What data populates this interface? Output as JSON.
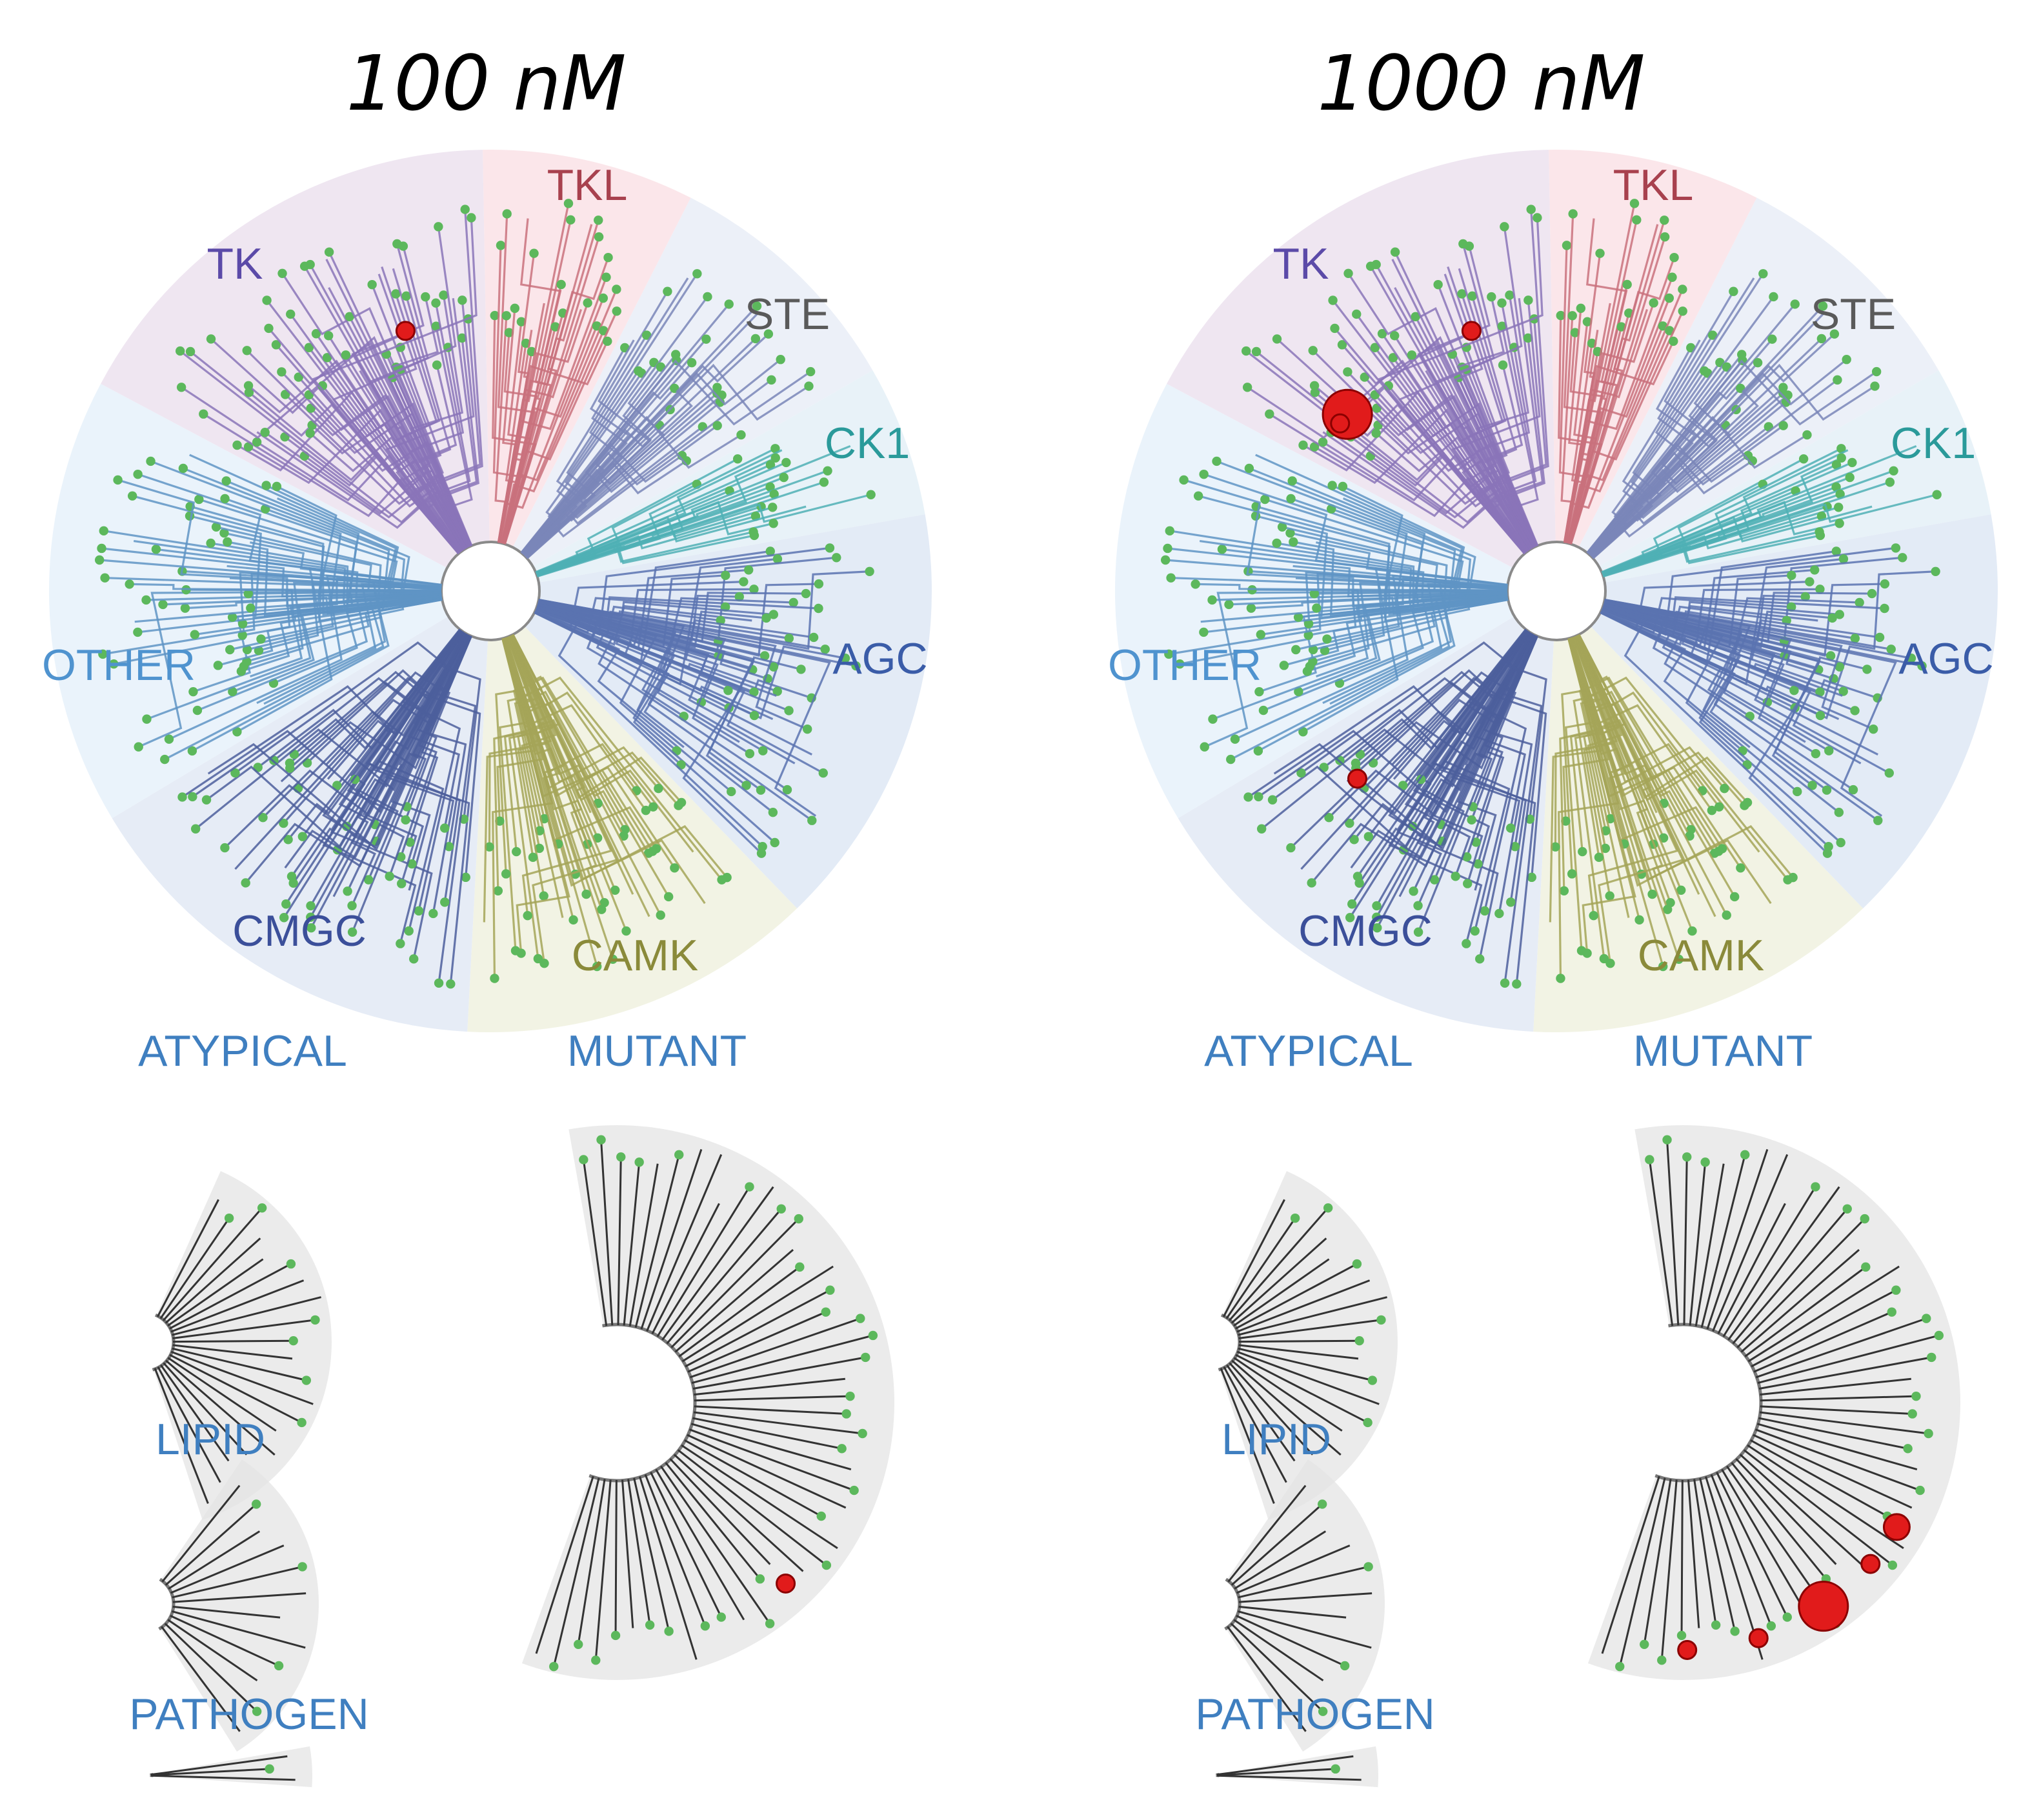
{
  "panels": [
    {
      "id": "left",
      "title": "100 nM",
      "hits": [
        {
          "group": "TK",
          "leaf": 0.72,
          "size": "small"
        },
        {
          "group": "MUTANT",
          "leaf": 0.7,
          "size": "small"
        }
      ]
    },
    {
      "id": "right",
      "title": "1000 nM",
      "hits": [
        {
          "group": "TK",
          "leaf": 0.72,
          "size": "small"
        },
        {
          "group": "TK",
          "leaf": 0.2,
          "size": "large"
        },
        {
          "group": "TK",
          "leaf": 0.16,
          "size": "small"
        },
        {
          "group": "CMGC",
          "leaf": 0.78,
          "size": "small"
        },
        {
          "group": "MUTANT",
          "leaf": 0.62,
          "size": "medium"
        },
        {
          "group": "MUTANT",
          "leaf": 0.67,
          "size": "small"
        },
        {
          "group": "MUTANT",
          "leaf": 0.74,
          "size": "large"
        },
        {
          "group": "MUTANT",
          "leaf": 0.82,
          "size": "small"
        },
        {
          "group": "MUTANT",
          "leaf": 0.9,
          "size": "small"
        }
      ]
    }
  ],
  "kinome_groups": [
    {
      "name": "TKL",
      "label_color": "#a8414e",
      "branch_color": "#c9717c",
      "bg_color": "#fbe6ea"
    },
    {
      "name": "STE",
      "label_color": "#5a5a5a",
      "branch_color": "#7a86b8",
      "bg_color": "#ecf0f8"
    },
    {
      "name": "CK1",
      "label_color": "#2a9a9a",
      "branch_color": "#4fb0b5",
      "bg_color": "#e8f2f8"
    },
    {
      "name": "AGC",
      "label_color": "#3a5ca8",
      "branch_color": "#5a73b0",
      "bg_color": "#e3ebf6"
    },
    {
      "name": "CAMK",
      "label_color": "#8a8a3a",
      "branch_color": "#a4a458",
      "bg_color": "#f2f3e4"
    },
    {
      "name": "CMGC",
      "label_color": "#3b4f9a",
      "branch_color": "#4c5f9c",
      "bg_color": "#e6ecf6"
    },
    {
      "name": "OTHER",
      "label_color": "#4f93cf",
      "branch_color": "#5f94c4",
      "bg_color": "#eaf3fb"
    },
    {
      "name": "TK",
      "label_color": "#5b4aa8",
      "branch_color": "#8a74b8",
      "bg_color": "#efe6f1"
    }
  ],
  "sub_trees": [
    {
      "name": "ATYPICAL"
    },
    {
      "name": "MUTANT"
    },
    {
      "name": "LIPID"
    },
    {
      "name": "PATHOGEN"
    }
  ],
  "colors": {
    "leaf_marker": "#5cb85c",
    "hit_marker": "#e11b1b",
    "subtree_branch": "#333333",
    "subtree_bg": "#e4e4e4"
  }
}
